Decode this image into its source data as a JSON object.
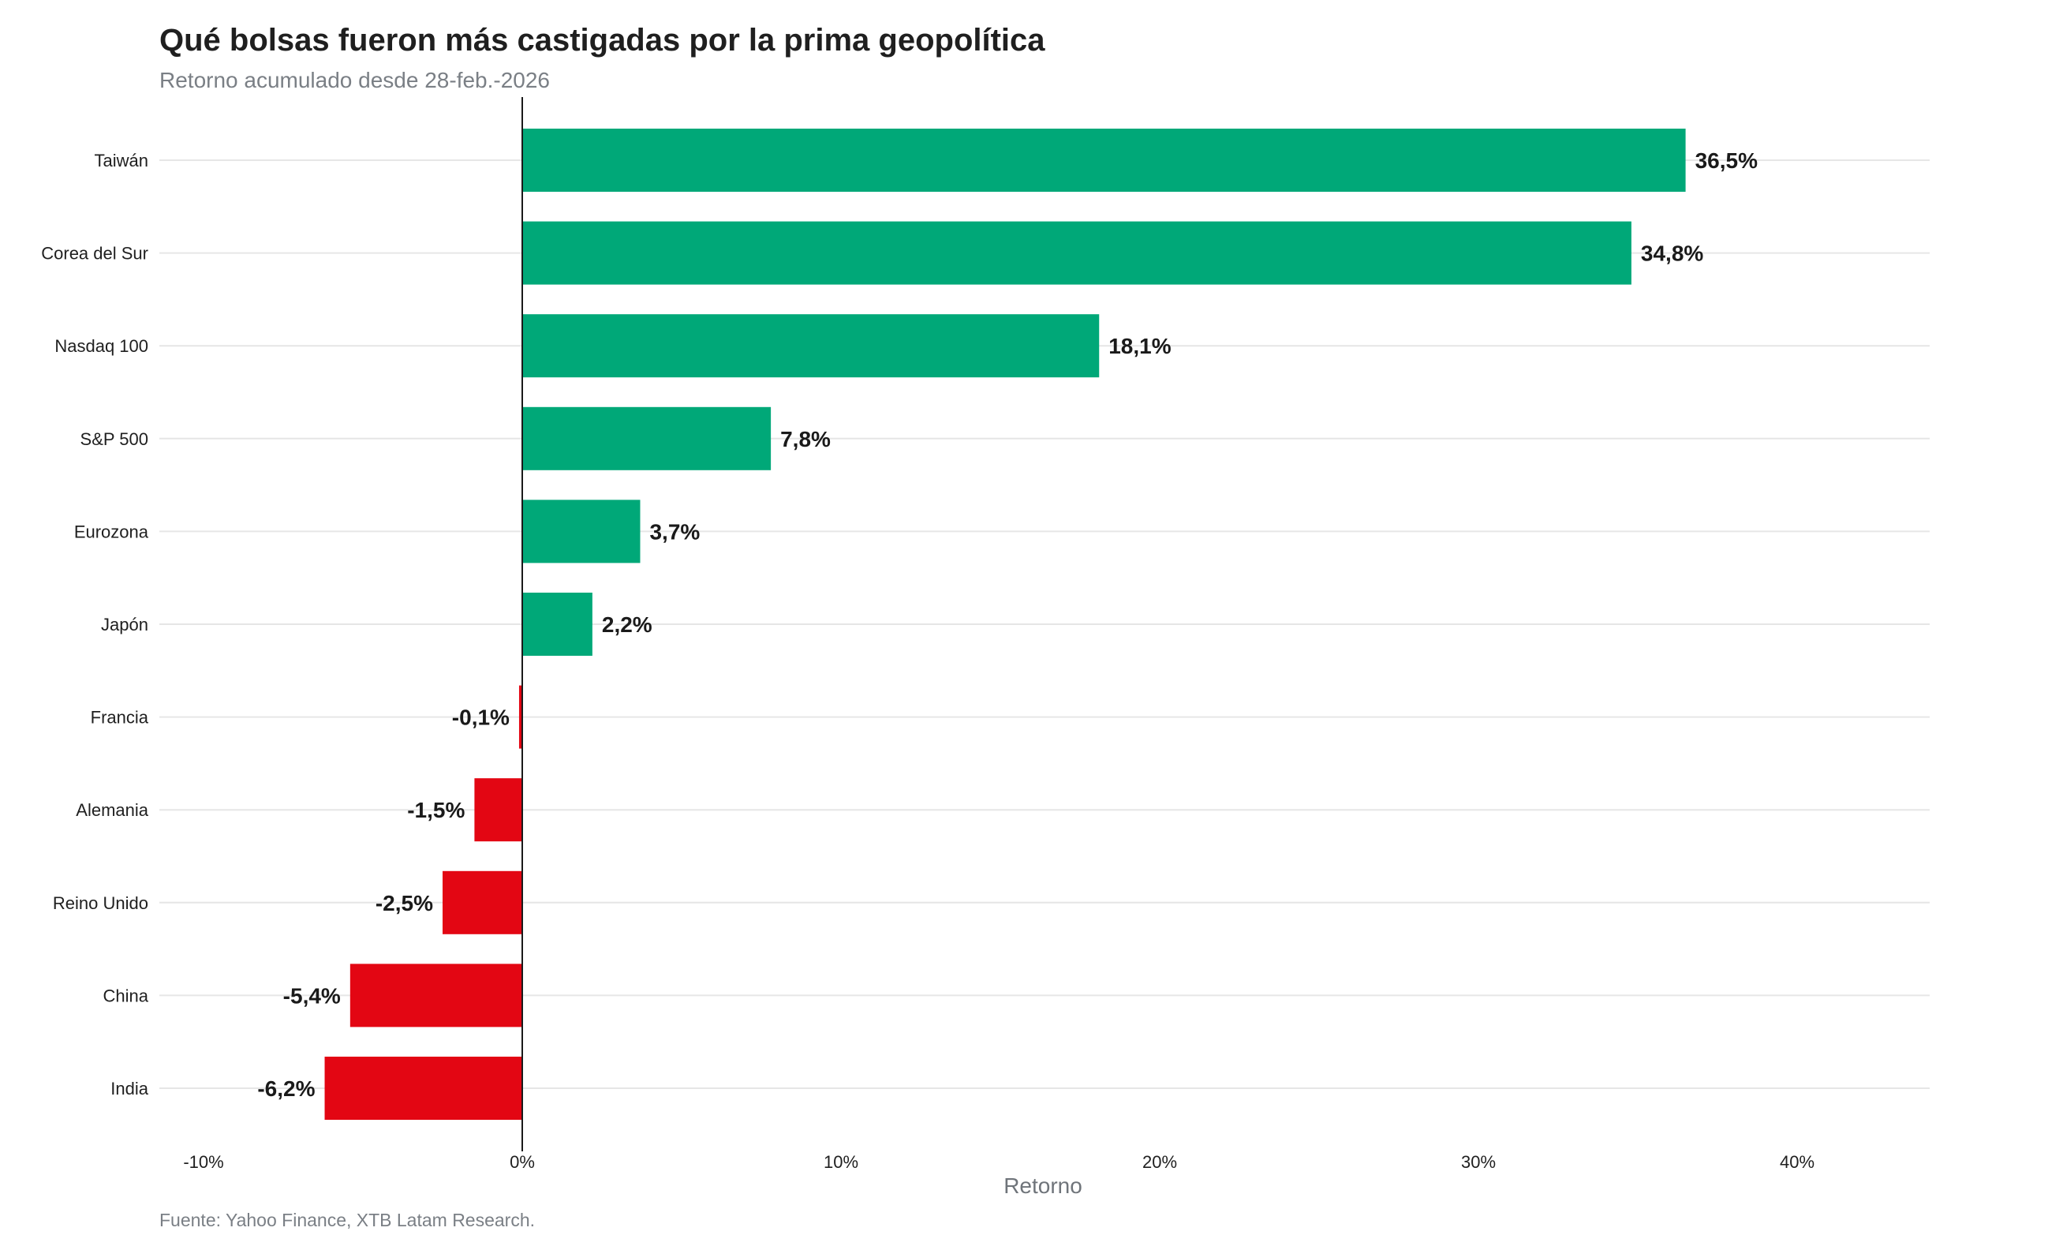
{
  "chart_data": {
    "type": "bar",
    "orientation": "horizontal",
    "title": "Qué bolsas fueron más castigadas por la prima geopolítica",
    "subtitle": "Retorno acumulado desde 28-feb.-2026",
    "xlabel": "Retorno",
    "ylabel": "",
    "caption": "Fuente: Yahoo Finance, XTB Latam Research.",
    "xlim": [
      -11.3,
      44.1
    ],
    "x_ticks": [
      -10,
      0,
      10,
      20,
      30,
      40
    ],
    "x_tick_labels": [
      "-10%",
      "0%",
      "10%",
      "20%",
      "30%",
      "40%"
    ],
    "grid": "horizontal",
    "legend": "none",
    "colors": {
      "positive": "#00a878",
      "negative": "#e30613"
    },
    "categories": [
      "Taiwán",
      "Corea del Sur",
      "Nasdaq 100",
      "S&P 500",
      "Eurozona",
      "Japón",
      "Francia",
      "Alemania",
      "Reino Unido",
      "China",
      "India"
    ],
    "values": [
      36.5,
      34.8,
      18.1,
      7.8,
      3.7,
      2.2,
      -0.1,
      -1.5,
      -2.5,
      -5.4,
      -6.2
    ],
    "value_labels": [
      "36,5%",
      "34,8%",
      "18,1%",
      "7,8%",
      "3,7%",
      "2,2%",
      "-0,1%",
      "-1,5%",
      "-2,5%",
      "-5,4%",
      "-6,2%"
    ]
  }
}
